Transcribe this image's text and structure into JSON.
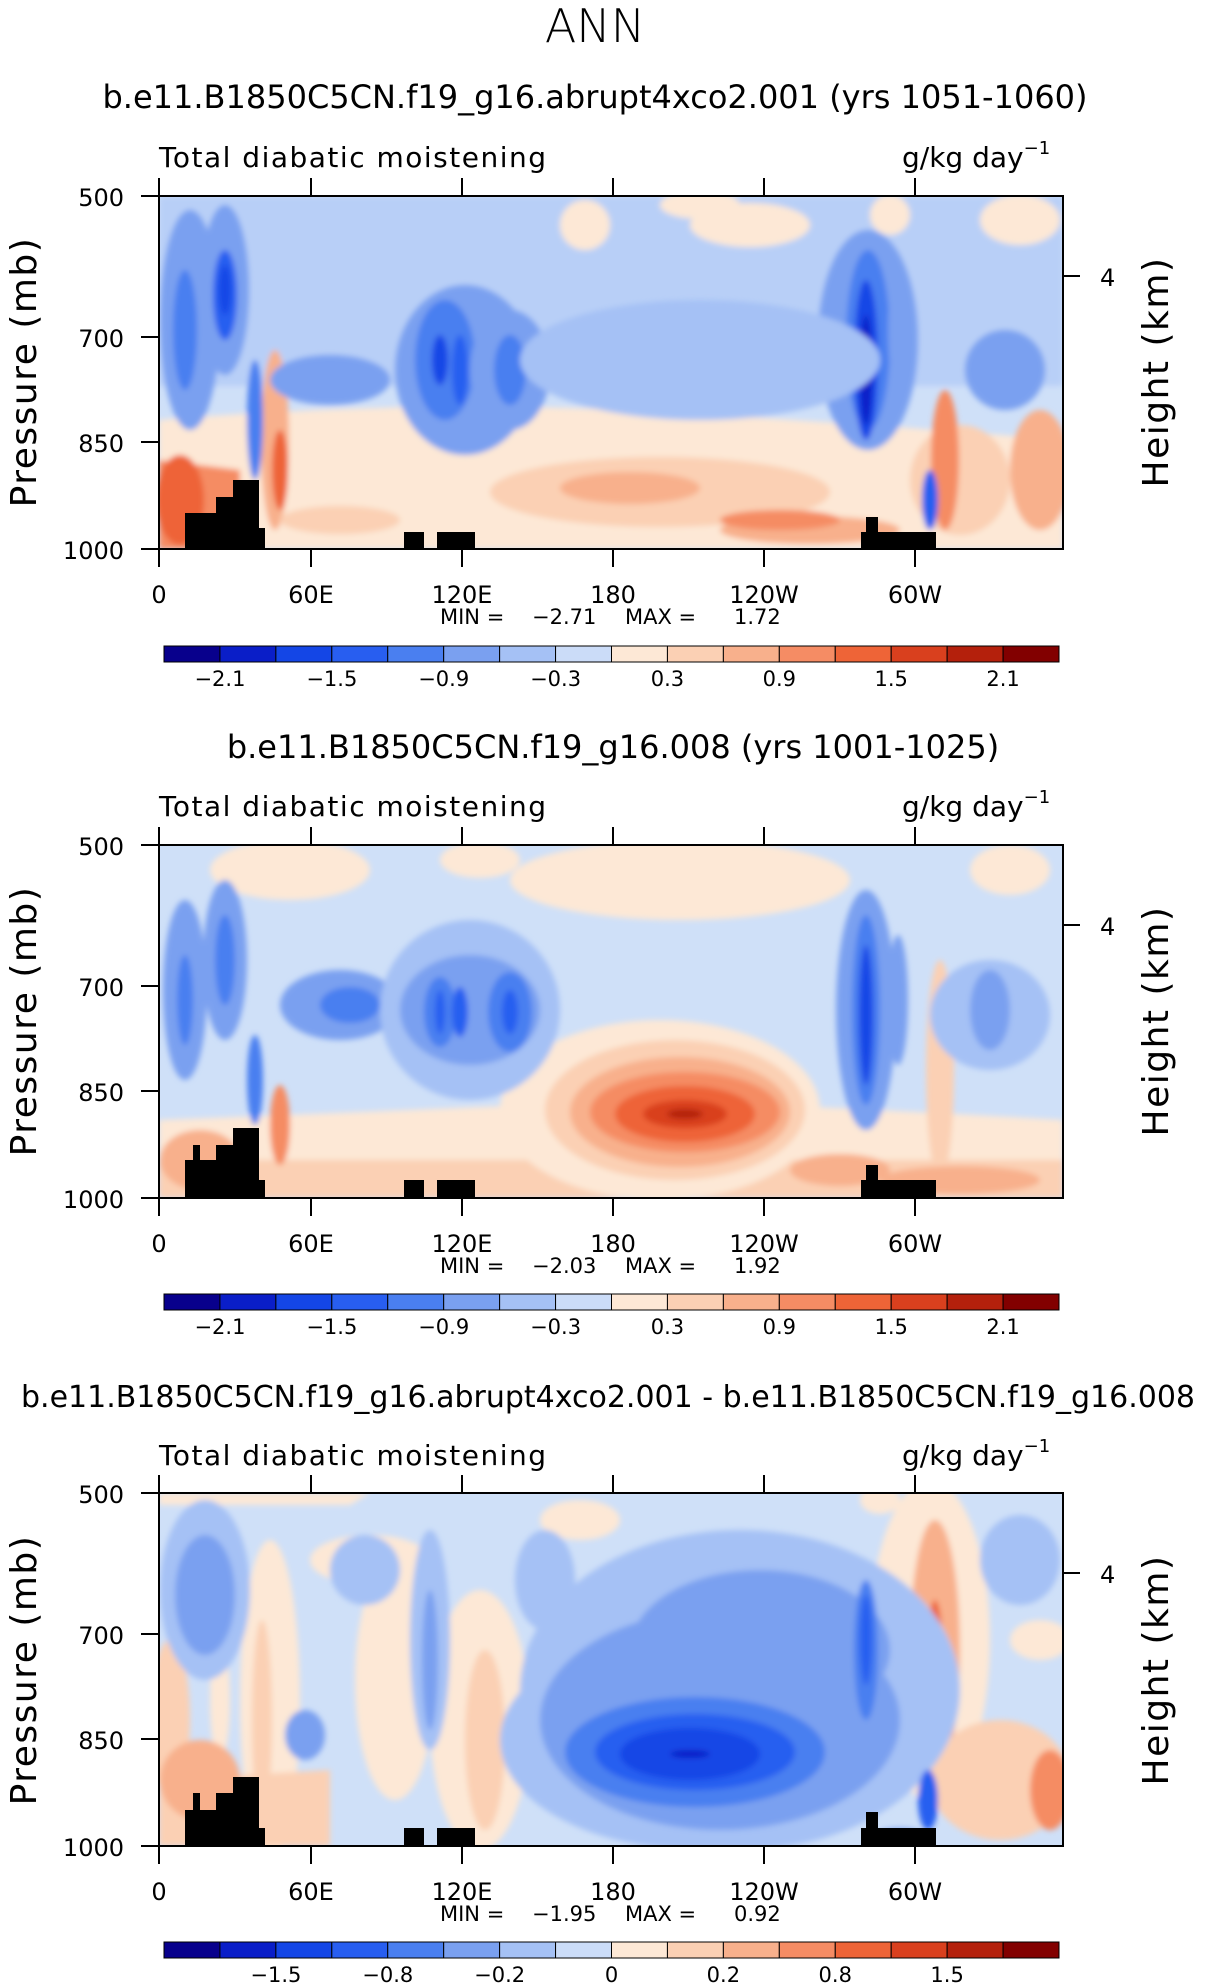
{
  "figure": {
    "title": "ANN"
  },
  "chart_data": [
    {
      "type": "contour",
      "title": "b.e11.B1850C5CN.f19_g16.abrupt4xco2.001 (yrs 1051-1060)",
      "left_label": "Total diabatic moistening",
      "units": "g/kg day",
      "units_exp": "−1",
      "ylabel": "Pressure (mb)",
      "y2label": "Height (km)",
      "y_ticks": [
        "500",
        "700",
        "850",
        "1000"
      ],
      "y2_ticks": [
        "4"
      ],
      "x_ticks": [
        "0",
        "60E",
        "120E",
        "180",
        "120W",
        "60W"
      ],
      "min_label": "MIN =",
      "min_value": "−2.71",
      "max_label": "MAX =",
      "max_value": "1.72",
      "colorbar_labels": [
        "−2.1",
        "−1.5",
        "−0.9",
        "−0.3",
        "0.3",
        "0.9",
        "1.5",
        "2.1"
      ],
      "ylim": [
        1000,
        500
      ],
      "xlim": [
        0,
        360
      ]
    },
    {
      "type": "contour",
      "title": "b.e11.B1850C5CN.f19_g16.008 (yrs 1001-1025)",
      "left_label": "Total diabatic moistening",
      "units": "g/kg day",
      "units_exp": "−1",
      "ylabel": "Pressure (mb)",
      "y2label": "Height (km)",
      "y_ticks": [
        "500",
        "700",
        "850",
        "1000"
      ],
      "y2_ticks": [
        "4"
      ],
      "x_ticks": [
        "0",
        "60E",
        "120E",
        "180",
        "120W",
        "60W"
      ],
      "min_label": "MIN =",
      "min_value": "−2.03",
      "max_label": "MAX =",
      "max_value": "1.92",
      "colorbar_labels": [
        "−2.1",
        "−1.5",
        "−0.9",
        "−0.3",
        "0.3",
        "0.9",
        "1.5",
        "2.1"
      ],
      "ylim": [
        1000,
        500
      ],
      "xlim": [
        0,
        360
      ]
    },
    {
      "type": "contour",
      "title": "b.e11.B1850C5CN.f19_g16.abrupt4xco2.001 - b.e11.B1850C5CN.f19_g16.008",
      "left_label": "Total diabatic moistening",
      "units": "g/kg day",
      "units_exp": "−1",
      "ylabel": "Pressure (mb)",
      "y2label": "Height (km)",
      "y_ticks": [
        "500",
        "700",
        "850",
        "1000"
      ],
      "y2_ticks": [
        "4"
      ],
      "x_ticks": [
        "0",
        "60E",
        "120E",
        "180",
        "120W",
        "60W"
      ],
      "min_label": "MIN =",
      "min_value": "−1.95",
      "max_label": "MAX =",
      "max_value": "0.92",
      "colorbar_labels": [
        "−1.5",
        "−0.8",
        "−0.2",
        "0",
        "0.2",
        "0.8",
        "1.5"
      ],
      "ylim": [
        1000,
        500
      ],
      "xlim": [
        0,
        360
      ]
    }
  ],
  "colors": {
    "colorbar": [
      "#08008c",
      "#0a1ec8",
      "#1446e6",
      "#285ef0",
      "#4a7ff0",
      "#7aa0f0",
      "#a5c1f5",
      "#cbdcf8",
      "#fde8d6",
      "#fbd0b4",
      "#f8b08c",
      "#f58c64",
      "#ee6437",
      "#d9401e",
      "#b4200c",
      "#820000"
    ],
    "colorbar_diff": [
      "#08008c",
      "#0a1ec8",
      "#1446e6",
      "#285ef0",
      "#4a7ff0",
      "#7aa0f0",
      "#a5c1f5",
      "#cbdcf8",
      "#fde8d6",
      "#fbd0b4",
      "#f8b08c",
      "#f58c64",
      "#ee6437",
      "#d9401e",
      "#b4200c",
      "#820000"
    ],
    "background": "#cfe0f8",
    "light_blue": "#a5c1f5",
    "mid_blue": "#7aa0f0",
    "blue": "#4a7ff0",
    "deep_blue": "#1446e6",
    "darkest_blue": "#0a1ec8",
    "light_red": "#fde8d6",
    "salmon": "#f8b08c",
    "orange": "#f58c64",
    "red": "#ee6437",
    "dark_red": "#d9401e",
    "terrain": "#000000"
  }
}
